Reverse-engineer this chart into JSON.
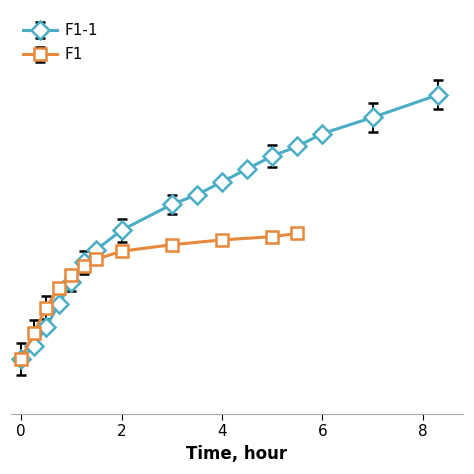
{
  "F1_1_x": [
    0.0,
    0.25,
    0.5,
    0.75,
    1.0,
    1.25,
    1.5,
    2.0,
    3.0,
    3.5,
    4.0,
    4.5,
    5.0,
    5.5,
    6.0,
    7.0,
    8.3
  ],
  "F1_1_y": [
    2.0,
    6.0,
    12.0,
    19.0,
    26.0,
    32.0,
    36.0,
    42.0,
    50.0,
    53.0,
    57.0,
    61.0,
    65.0,
    68.0,
    72.0,
    77.0,
    84.0
  ],
  "F1_1_yerr": [
    0.0,
    0.0,
    0.0,
    0.0,
    3.0,
    3.5,
    0.0,
    3.5,
    3.0,
    0.0,
    0.0,
    0.0,
    3.5,
    0.0,
    0.0,
    4.5,
    4.5
  ],
  "F1_x": [
    0.0,
    0.25,
    0.5,
    0.75,
    1.0,
    1.25,
    1.5,
    2.0,
    3.0,
    4.0,
    5.0,
    5.5
  ],
  "F1_y": [
    2.0,
    10.0,
    18.0,
    24.0,
    28.0,
    31.0,
    33.0,
    35.5,
    37.5,
    39.0,
    40.0,
    41.0
  ],
  "F1_yerr": [
    5.0,
    4.0,
    3.5,
    0.0,
    0.0,
    0.0,
    0.0,
    0.0,
    0.0,
    0.0,
    0.0,
    0.0
  ],
  "F1_1_color": "#4baec6",
  "F1_color": "#e8883a",
  "xlabel": "Time, hour",
  "xlim": [
    -0.2,
    8.8
  ],
  "ylim": [
    -15,
    110
  ],
  "xticks": [
    0,
    2,
    4,
    6,
    8
  ],
  "legend_labels": [
    "F1-1",
    "F1"
  ],
  "figsize": [
    4.74,
    4.74
  ],
  "dpi": 100
}
